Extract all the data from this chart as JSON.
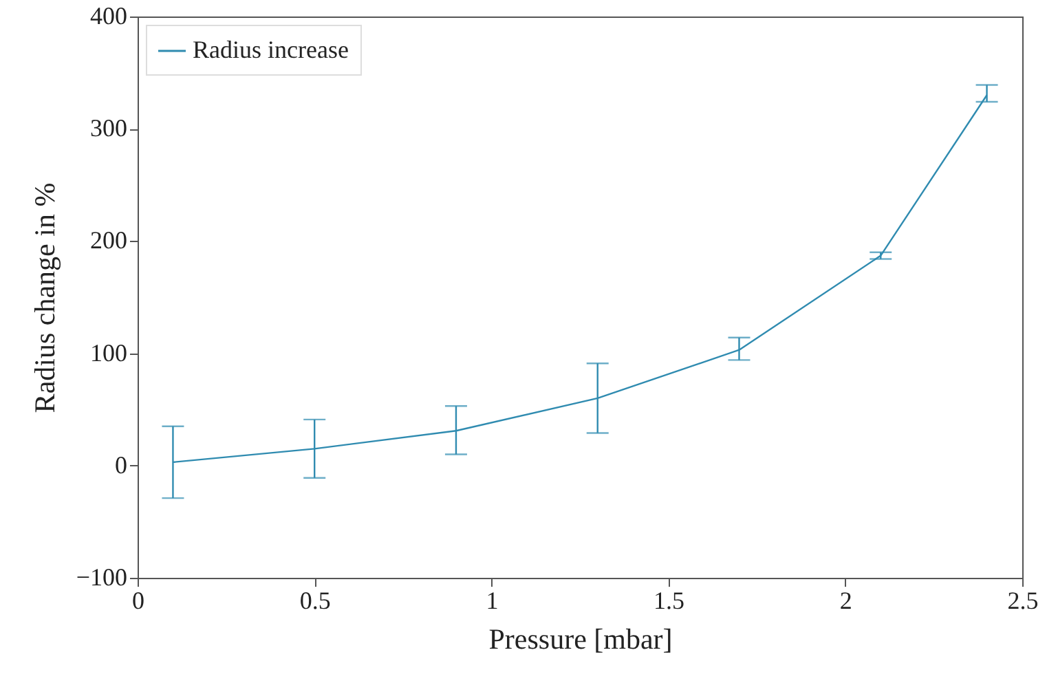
{
  "chart_data": {
    "type": "line",
    "xlabel": "Pressure [mbar]",
    "ylabel": "Radius change in %",
    "x": [
      0.1,
      0.5,
      0.9,
      1.3,
      1.7,
      2.1,
      2.4
    ],
    "series": [
      {
        "name": "Radius increase",
        "color": "#2f8bb0",
        "values": [
          3,
          15,
          31,
          60,
          103,
          187,
          330
        ],
        "errors": [
          [
            -29,
            35
          ],
          [
            -11,
            41
          ],
          [
            10,
            53
          ],
          [
            29,
            91
          ],
          [
            94,
            114
          ],
          [
            184,
            190
          ],
          [
            324,
            339
          ]
        ]
      }
    ],
    "xlim": [
      0,
      2.5
    ],
    "xticks": [
      0,
      0.5,
      1,
      1.5,
      2,
      2.5
    ],
    "ylim": [
      -100,
      400
    ],
    "yticks": [
      -100,
      0,
      100,
      200,
      300,
      400
    ],
    "grid": false,
    "legend": "top left",
    "marker": "none",
    "line_style": "solid"
  }
}
